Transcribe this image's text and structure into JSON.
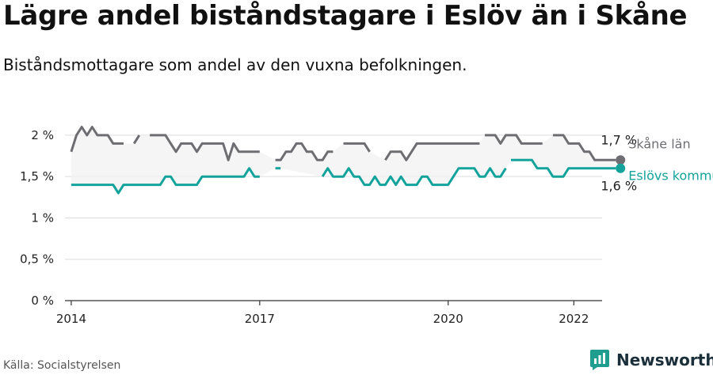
{
  "title": "Lägre andel biståndstagare i Eslöv än i Skåne",
  "subtitle": "Biståndsmottagare som andel av den vuxna befolkningen.",
  "source": "Källa: Socialstyrelsen",
  "brand": "Newsworthy",
  "chart_data": {
    "type": "line",
    "ylim": [
      0,
      2.2
    ],
    "xlim": [
      2013.9,
      2022.45
    ],
    "y_ticks": [
      {
        "value": 0,
        "label": "0 %"
      },
      {
        "value": 0.5,
        "label": "0,5 %"
      },
      {
        "value": 1,
        "label": "1 %"
      },
      {
        "value": 1.5,
        "label": "1,5 %"
      },
      {
        "value": 2,
        "label": "2 %"
      }
    ],
    "x_ticks": [
      {
        "value": 2014,
        "label": "2014"
      },
      {
        "value": 2017,
        "label": "2017"
      },
      {
        "value": 2020,
        "label": "2020"
      },
      {
        "value": 2022,
        "label": "2022"
      }
    ],
    "grid": true,
    "series": [
      {
        "name": "Skåne län",
        "color": "#6e6e72",
        "end_label": "1,7 %",
        "points": [
          [
            2014.0,
            1.8
          ],
          [
            2014.083,
            2.0
          ],
          [
            2014.167,
            2.1
          ],
          [
            2014.25,
            2.0
          ],
          [
            2014.333,
            2.1
          ],
          [
            2014.417,
            2.0
          ],
          [
            2014.5,
            2.0
          ],
          [
            2014.583,
            2.0
          ],
          [
            2014.667,
            1.9
          ],
          [
            2014.75,
            1.9
          ],
          [
            2014.833,
            1.9
          ],
          null,
          [
            2015.0,
            1.9
          ],
          [
            2015.083,
            2.0
          ],
          null,
          [
            2015.25,
            2.0
          ],
          [
            2015.333,
            2.0
          ],
          [
            2015.417,
            2.0
          ],
          [
            2015.5,
            2.0
          ],
          [
            2015.583,
            1.9
          ],
          [
            2015.667,
            1.8
          ],
          [
            2015.75,
            1.9
          ],
          [
            2015.833,
            1.9
          ],
          [
            2015.917,
            1.9
          ],
          [
            2016.0,
            1.8
          ],
          [
            2016.083,
            1.9
          ],
          [
            2016.167,
            1.9
          ],
          [
            2016.25,
            1.9
          ],
          [
            2016.333,
            1.9
          ],
          [
            2016.417,
            1.9
          ],
          [
            2016.5,
            1.7
          ],
          [
            2016.583,
            1.9
          ],
          [
            2016.667,
            1.8
          ],
          [
            2016.75,
            1.8
          ],
          [
            2016.833,
            1.8
          ],
          [
            2016.917,
            1.8
          ],
          [
            2017.0,
            1.8
          ],
          null,
          [
            2017.25,
            1.7
          ],
          [
            2017.333,
            1.7
          ],
          [
            2017.417,
            1.8
          ],
          [
            2017.5,
            1.8
          ],
          [
            2017.583,
            1.9
          ],
          [
            2017.667,
            1.9
          ],
          [
            2017.75,
            1.8
          ],
          [
            2017.833,
            1.8
          ],
          [
            2017.917,
            1.7
          ],
          [
            2018.0,
            1.7
          ],
          [
            2018.083,
            1.8
          ],
          [
            2018.167,
            1.8
          ],
          null,
          [
            2018.333,
            1.9
          ],
          [
            2018.417,
            1.9
          ],
          [
            2018.5,
            1.9
          ],
          [
            2018.583,
            1.9
          ],
          [
            2018.667,
            1.9
          ],
          [
            2018.75,
            1.8
          ],
          null,
          [
            2019.0,
            1.7
          ],
          [
            2019.083,
            1.8
          ],
          [
            2019.167,
            1.8
          ],
          [
            2019.25,
            1.8
          ],
          [
            2019.333,
            1.7
          ],
          [
            2019.417,
            1.8
          ],
          [
            2019.5,
            1.9
          ],
          [
            2019.583,
            1.9
          ],
          [
            2019.667,
            1.9
          ],
          [
            2019.75,
            1.9
          ],
          [
            2019.833,
            1.9
          ],
          [
            2019.917,
            1.9
          ],
          [
            2020.0,
            1.9
          ],
          [
            2020.083,
            1.9
          ],
          [
            2020.167,
            1.9
          ],
          [
            2020.25,
            1.9
          ],
          [
            2020.333,
            1.9
          ],
          [
            2020.417,
            1.9
          ],
          [
            2020.5,
            1.9
          ],
          null,
          [
            2020.583,
            2.0
          ],
          [
            2020.667,
            2.0
          ],
          [
            2020.75,
            2.0
          ],
          [
            2020.833,
            1.9
          ],
          [
            2020.917,
            2.0
          ],
          [
            2021.0,
            2.0
          ],
          [
            2021.083,
            2.0
          ],
          [
            2021.167,
            1.9
          ],
          [
            2021.25,
            1.9
          ],
          [
            2021.333,
            1.9
          ],
          [
            2021.417,
            1.9
          ],
          [
            2021.5,
            1.9
          ],
          null,
          [
            2021.667,
            2.0
          ],
          [
            2021.75,
            2.0
          ],
          [
            2021.833,
            2.0
          ],
          [
            2021.917,
            1.9
          ],
          [
            2022.0,
            1.9
          ],
          [
            2022.083,
            1.9
          ],
          [
            2022.167,
            1.8
          ],
          [
            2022.25,
            1.8
          ],
          [
            2022.333,
            1.7
          ],
          [
            2022.417,
            1.7
          ],
          [
            2022.5,
            1.7
          ],
          [
            2022.583,
            1.7
          ],
          [
            2022.667,
            1.7
          ]
        ]
      },
      {
        "name": "Eslövs kommun",
        "color": "#13a39b",
        "end_label": "1,6 %",
        "points": [
          [
            2014.0,
            1.4
          ],
          [
            2014.083,
            1.4
          ],
          [
            2014.167,
            1.4
          ],
          [
            2014.25,
            1.4
          ],
          [
            2014.333,
            1.4
          ],
          [
            2014.417,
            1.4
          ],
          [
            2014.5,
            1.4
          ],
          [
            2014.583,
            1.4
          ],
          [
            2014.667,
            1.4
          ],
          [
            2014.75,
            1.3
          ],
          [
            2014.833,
            1.4
          ],
          [
            2014.917,
            1.4
          ],
          [
            2015.0,
            1.4
          ],
          [
            2015.083,
            1.4
          ],
          [
            2015.167,
            1.4
          ],
          [
            2015.25,
            1.4
          ],
          [
            2015.333,
            1.4
          ],
          [
            2015.417,
            1.4
          ],
          [
            2015.5,
            1.5
          ],
          [
            2015.583,
            1.5
          ],
          [
            2015.667,
            1.4
          ],
          [
            2015.75,
            1.4
          ],
          [
            2015.833,
            1.4
          ],
          [
            2015.917,
            1.4
          ],
          [
            2016.0,
            1.4
          ],
          [
            2016.083,
            1.5
          ],
          [
            2016.167,
            1.5
          ],
          [
            2016.25,
            1.5
          ],
          [
            2016.333,
            1.5
          ],
          [
            2016.417,
            1.5
          ],
          [
            2016.5,
            1.5
          ],
          [
            2016.583,
            1.5
          ],
          [
            2016.667,
            1.5
          ],
          [
            2016.75,
            1.5
          ],
          [
            2016.833,
            1.6
          ],
          [
            2016.917,
            1.5
          ],
          [
            2017.0,
            1.5
          ],
          null,
          [
            2017.25,
            1.6
          ],
          [
            2017.333,
            1.6
          ],
          null,
          [
            2018.0,
            1.5
          ],
          [
            2018.083,
            1.6
          ],
          [
            2018.167,
            1.5
          ],
          [
            2018.25,
            1.5
          ],
          [
            2018.333,
            1.5
          ],
          [
            2018.417,
            1.6
          ],
          [
            2018.5,
            1.5
          ],
          [
            2018.583,
            1.5
          ],
          [
            2018.667,
            1.4
          ],
          [
            2018.75,
            1.4
          ],
          [
            2018.833,
            1.5
          ],
          [
            2018.917,
            1.4
          ],
          [
            2019.0,
            1.4
          ],
          [
            2019.083,
            1.5
          ],
          [
            2019.167,
            1.4
          ],
          [
            2019.25,
            1.5
          ],
          [
            2019.333,
            1.4
          ],
          [
            2019.417,
            1.4
          ],
          [
            2019.5,
            1.4
          ],
          [
            2019.583,
            1.5
          ],
          [
            2019.667,
            1.5
          ],
          [
            2019.75,
            1.4
          ],
          [
            2019.833,
            1.4
          ],
          [
            2019.917,
            1.4
          ],
          [
            2020.0,
            1.4
          ],
          [
            2020.083,
            1.5
          ],
          [
            2020.167,
            1.6
          ],
          [
            2020.25,
            1.6
          ],
          [
            2020.333,
            1.6
          ],
          [
            2020.417,
            1.6
          ],
          [
            2020.5,
            1.5
          ],
          [
            2020.583,
            1.5
          ],
          [
            2020.667,
            1.6
          ],
          [
            2020.75,
            1.5
          ],
          [
            2020.833,
            1.5
          ],
          [
            2020.917,
            1.6
          ],
          null,
          [
            2021.0,
            1.7
          ],
          [
            2021.083,
            1.7
          ],
          [
            2021.167,
            1.7
          ],
          [
            2021.25,
            1.7
          ],
          [
            2021.333,
            1.7
          ],
          [
            2021.417,
            1.6
          ],
          [
            2021.5,
            1.6
          ],
          [
            2021.583,
            1.6
          ],
          [
            2021.667,
            1.5
          ],
          [
            2021.75,
            1.5
          ],
          [
            2021.833,
            1.5
          ],
          [
            2021.917,
            1.6
          ],
          [
            2022.0,
            1.6
          ],
          [
            2022.083,
            1.6
          ],
          [
            2022.167,
            1.6
          ],
          [
            2022.25,
            1.6
          ],
          [
            2022.333,
            1.6
          ],
          [
            2022.417,
            1.6
          ],
          [
            2022.5,
            1.6
          ],
          [
            2022.583,
            1.6
          ],
          [
            2022.667,
            1.6
          ]
        ]
      }
    ]
  }
}
